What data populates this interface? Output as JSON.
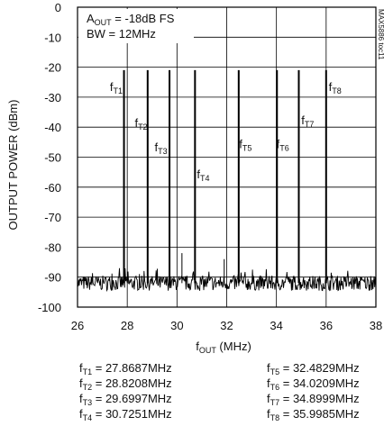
{
  "chart_data": {
    "type": "line",
    "xlabel": {
      "main": "f",
      "sub": "OUT",
      "tail": " (MHz)"
    },
    "ylabel": "OUTPUT POWER (dBm)",
    "xlim": [
      26,
      38
    ],
    "ylim": [
      -100,
      0
    ],
    "xticks": [
      26,
      28,
      30,
      32,
      34,
      36,
      38
    ],
    "yticks": [
      0,
      -10,
      -20,
      -30,
      -40,
      -50,
      -60,
      -70,
      -80,
      -90,
      -100
    ],
    "grid": true,
    "noise_floor_dbm": -92,
    "annotation": {
      "line1": {
        "pre": "A",
        "sub": "OUT",
        "post": " = -18dB FS"
      },
      "line2": "BW = 12MHz"
    },
    "figure_id": "MAX5886 toc11",
    "tones": [
      {
        "label": "T1",
        "freq_mhz": 27.8687,
        "power_dbm": -21,
        "label_x": 27.3,
        "label_y": -28
      },
      {
        "label": "T2",
        "freq_mhz": 28.8208,
        "power_dbm": -21,
        "label_x": 28.3,
        "label_y": -40
      },
      {
        "label": "T3",
        "freq_mhz": 29.6997,
        "power_dbm": -21,
        "label_x": 29.1,
        "label_y": -48
      },
      {
        "label": "T4",
        "freq_mhz": 30.7251,
        "power_dbm": -21,
        "label_x": 30.8,
        "label_y": -57
      },
      {
        "label": "T5",
        "freq_mhz": 32.4829,
        "power_dbm": -21,
        "label_x": 32.5,
        "label_y": -47
      },
      {
        "label": "T6",
        "freq_mhz": 34.0209,
        "power_dbm": -21,
        "label_x": 34.0,
        "label_y": -47
      },
      {
        "label": "T7",
        "freq_mhz": 34.8999,
        "power_dbm": -21,
        "label_x": 35.0,
        "label_y": -39
      },
      {
        "label": "T8",
        "freq_mhz": 35.9985,
        "power_dbm": -21,
        "label_x": 36.1,
        "label_y": -28
      }
    ],
    "spurs": [
      {
        "freq_mhz": 30.2,
        "power_dbm": -82
      },
      {
        "freq_mhz": 31.9,
        "power_dbm": -84
      }
    ]
  },
  "frequency_list": [
    {
      "sub": "T1",
      "text": " = 27.8687MHz"
    },
    {
      "sub": "T2",
      "text": " = 28.8208MHz"
    },
    {
      "sub": "T3",
      "text": " = 29.6997MHz"
    },
    {
      "sub": "T4",
      "text": " = 30.7251MHz"
    },
    {
      "sub": "T5",
      "text": " = 32.4829MHz"
    },
    {
      "sub": "T6",
      "text": " = 34.0209MHz"
    },
    {
      "sub": "T7",
      "text": " = 34.8999MHz"
    },
    {
      "sub": "T8",
      "text": " = 35.9985MHz"
    }
  ],
  "colors": {
    "trace": "#000000",
    "grid": "#000000",
    "text": "#111111"
  }
}
